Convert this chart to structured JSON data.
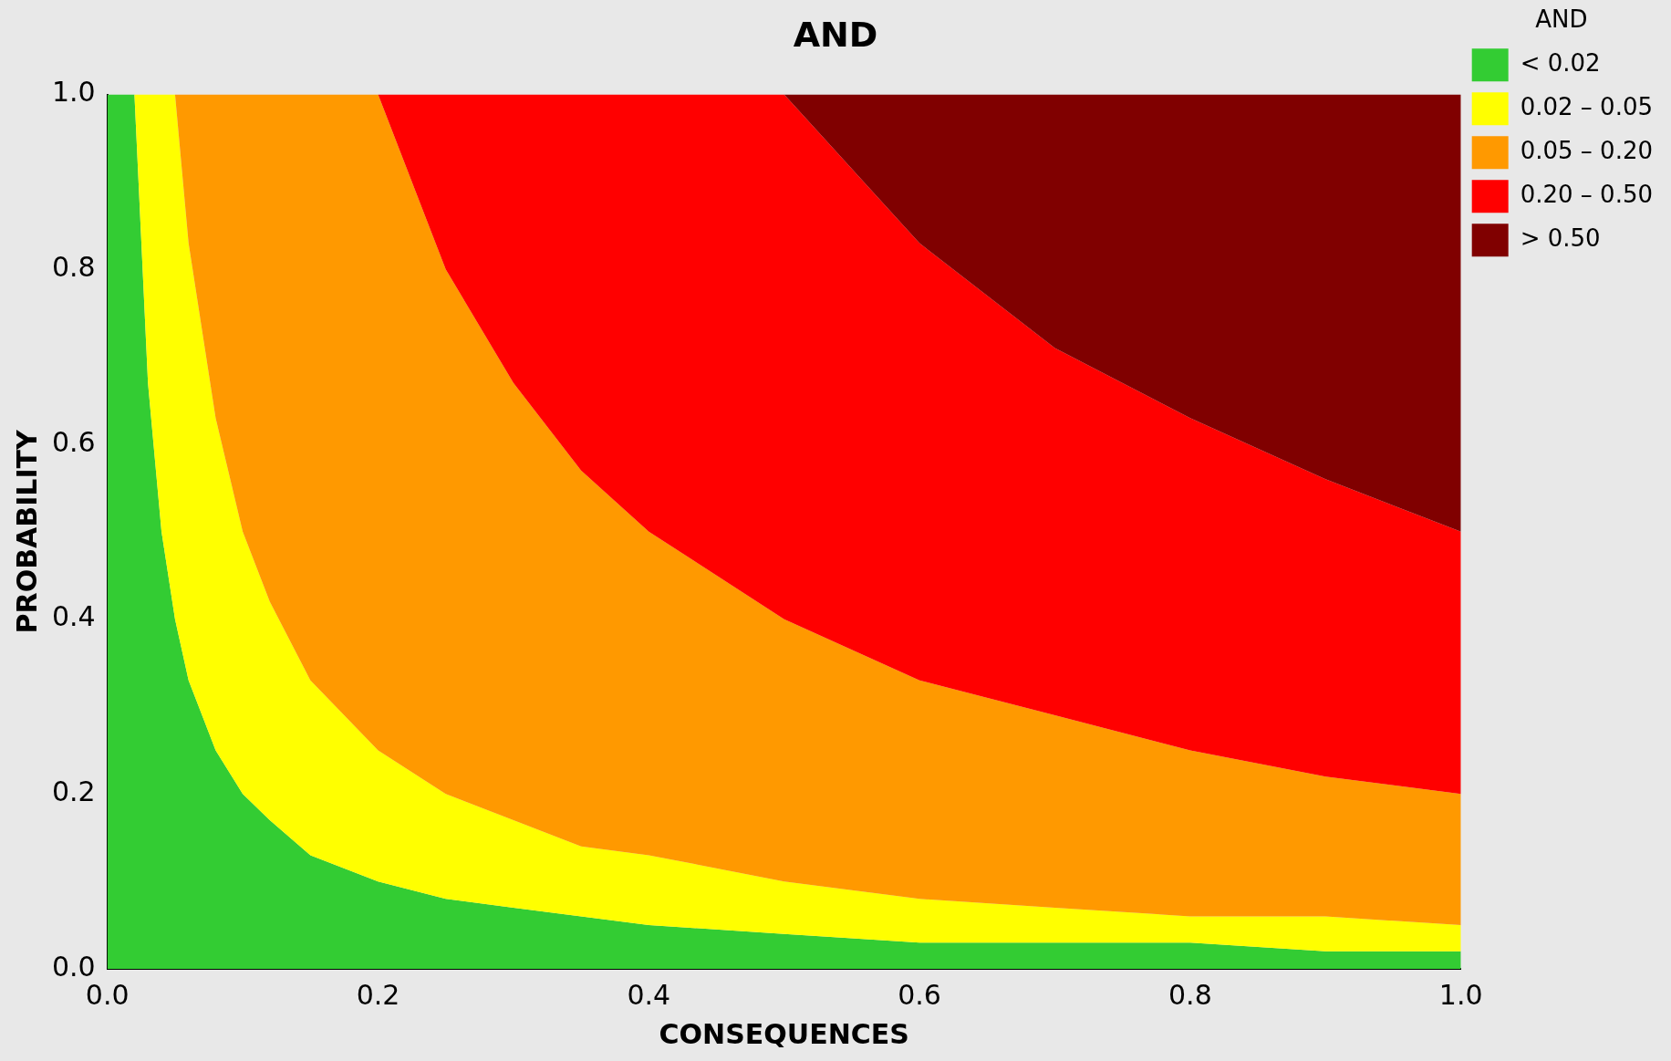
{
  "chart_data": {
    "type": "area",
    "title": "AND",
    "xlabel": "CONSEQUENCES",
    "ylabel": "PROBABILITY",
    "legend_title": "AND",
    "legend": "top right",
    "grid": false,
    "marker": "none",
    "x": [
      0,
      0.02,
      0.03,
      0.04,
      0.05,
      0.06,
      0.08,
      0.1,
      0.12,
      0.15,
      0.2,
      0.25,
      0.3,
      0.35,
      0.4,
      0.5,
      0.6,
      0.7,
      0.8,
      0.9,
      1.0
    ],
    "xlim": [
      0,
      1
    ],
    "ylim": [
      0,
      1
    ],
    "xticks": [
      {
        "value": 0,
        "label": "0.0"
      },
      {
        "value": 0.2,
        "label": "0.2"
      },
      {
        "value": 0.4,
        "label": "0.4"
      },
      {
        "value": 0.6,
        "label": "0.6"
      },
      {
        "value": 0.8,
        "label": "0.8"
      },
      {
        "value": 1,
        "label": "1.0"
      }
    ],
    "yticks": [
      {
        "value": 0,
        "label": "0.0"
      },
      {
        "value": 0.2,
        "label": "0.2"
      },
      {
        "value": 0.4,
        "label": "0.4"
      },
      {
        "value": 0.6,
        "label": "0.6"
      },
      {
        "value": 0.8,
        "label": "0.8"
      },
      {
        "value": 1,
        "label": "1.0"
      }
    ],
    "series": [
      {
        "name": "< 0.02",
        "color": "#33cc33",
        "values": [
          1,
          1,
          0.67,
          0.5,
          0.4,
          0.33,
          0.25,
          0.2,
          0.17,
          0.13,
          0.1,
          0.08,
          0.07,
          0.06,
          0.05,
          0.04,
          0.03,
          0.03,
          0.03,
          0.02,
          0.02
        ]
      },
      {
        "name": "0.02 – 0.05",
        "color": "#ffff00",
        "values": [
          1,
          1,
          1,
          1,
          1,
          0.83,
          0.63,
          0.5,
          0.42,
          0.33,
          0.25,
          0.2,
          0.17,
          0.14,
          0.13,
          0.1,
          0.08,
          0.07,
          0.06,
          0.06,
          0.05
        ]
      },
      {
        "name": "0.05 – 0.20",
        "color": "#ff9900",
        "values": [
          1,
          1,
          1,
          1,
          1,
          1,
          1,
          1,
          1,
          1,
          1,
          0.8,
          0.67,
          0.57,
          0.5,
          0.4,
          0.33,
          0.29,
          0.25,
          0.22,
          0.2
        ]
      },
      {
        "name": "0.20 – 0.50",
        "color": "#ff0000",
        "values": [
          1,
          1,
          1,
          1,
          1,
          1,
          1,
          1,
          1,
          1,
          1,
          1,
          1,
          1,
          1,
          1,
          0.83,
          0.71,
          0.63,
          0.56,
          0.5
        ]
      },
      {
        "name": "> 0.50",
        "color": "#800000",
        "values": [
          1,
          1,
          1,
          1,
          1,
          1,
          1,
          1,
          1,
          1,
          1,
          1,
          1,
          1,
          1,
          1,
          1,
          1,
          1,
          1,
          1
        ]
      }
    ]
  }
}
